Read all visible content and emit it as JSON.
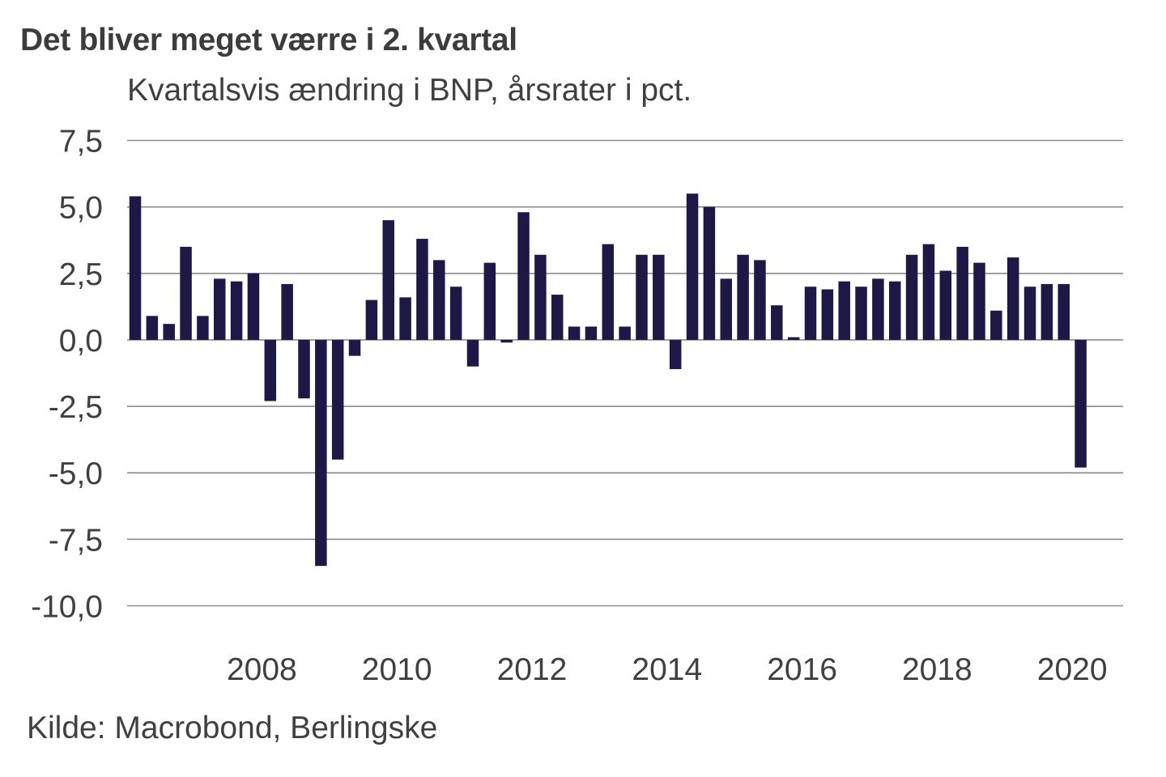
{
  "chart_data": {
    "type": "bar",
    "title": "Det bliver meget værre i 2. kvartal",
    "subtitle": "Kvartalsvis ændring i BNP, årsrater i pct.",
    "source": "Kilde: Macrobond, Berlingske",
    "xlabel": "",
    "ylabel": "",
    "ylim": [
      -10,
      7.5
    ],
    "grid": true,
    "legend": "none",
    "bar_color": "#1e1846",
    "gridline_color": "#8c8c8c",
    "y_ticks": [
      {
        "value": 7.5,
        "label": "7,5"
      },
      {
        "value": 5.0,
        "label": "5,0"
      },
      {
        "value": 2.5,
        "label": "2,5"
      },
      {
        "value": 0.0,
        "label": "0,0"
      },
      {
        "value": -2.5,
        "label": "-2,5"
      },
      {
        "value": -5.0,
        "label": "-5,0"
      },
      {
        "value": -7.5,
        "label": "-7,5"
      },
      {
        "value": -10.0,
        "label": "-10,0"
      }
    ],
    "x_ticks": [
      {
        "label": "2008",
        "quarter_index": 7.5
      },
      {
        "label": "2010",
        "quarter_index": 15.5
      },
      {
        "label": "2012",
        "quarter_index": 23.5
      },
      {
        "label": "2014",
        "quarter_index": 31.5
      },
      {
        "label": "2016",
        "quarter_index": 39.5
      },
      {
        "label": "2018",
        "quarter_index": 47.5
      },
      {
        "label": "2020",
        "quarter_index": 55.5
      }
    ],
    "categories": [
      "2006Q2",
      "2006Q3",
      "2006Q4",
      "2007Q1",
      "2007Q2",
      "2007Q3",
      "2007Q4",
      "2008Q1",
      "2008Q2",
      "2008Q3",
      "2008Q4",
      "2009Q1",
      "2009Q2",
      "2009Q3",
      "2009Q4",
      "2010Q1",
      "2010Q2",
      "2010Q3",
      "2010Q4",
      "2011Q1",
      "2011Q2",
      "2011Q3",
      "2011Q4",
      "2012Q1",
      "2012Q2",
      "2012Q3",
      "2012Q4",
      "2013Q1",
      "2013Q2",
      "2013Q3",
      "2013Q4",
      "2014Q1",
      "2014Q2",
      "2014Q3",
      "2014Q4",
      "2015Q1",
      "2015Q2",
      "2015Q3",
      "2015Q4",
      "2016Q1",
      "2016Q2",
      "2016Q3",
      "2016Q4",
      "2017Q1",
      "2017Q2",
      "2017Q3",
      "2017Q4",
      "2018Q1",
      "2018Q2",
      "2018Q3",
      "2018Q4",
      "2019Q1",
      "2019Q2",
      "2019Q3",
      "2019Q4",
      "2020Q1",
      "2020Q2"
    ],
    "values": [
      5.4,
      0.9,
      0.6,
      3.5,
      0.9,
      2.3,
      2.2,
      2.5,
      -2.3,
      2.1,
      -2.2,
      -8.5,
      -4.5,
      -0.6,
      1.5,
      4.5,
      1.6,
      3.8,
      3.0,
      2.0,
      -1.0,
      2.9,
      -0.1,
      4.8,
      3.2,
      1.7,
      0.5,
      0.5,
      3.6,
      0.5,
      3.2,
      3.2,
      -1.1,
      5.5,
      5.0,
      2.3,
      3.2,
      3.0,
      1.3,
      0.1,
      2.0,
      1.9,
      2.2,
      2.0,
      2.3,
      2.2,
      3.2,
      3.6,
      2.6,
      3.5,
      2.9,
      1.1,
      3.1,
      2.0,
      2.1,
      2.1,
      -4.8
    ]
  }
}
